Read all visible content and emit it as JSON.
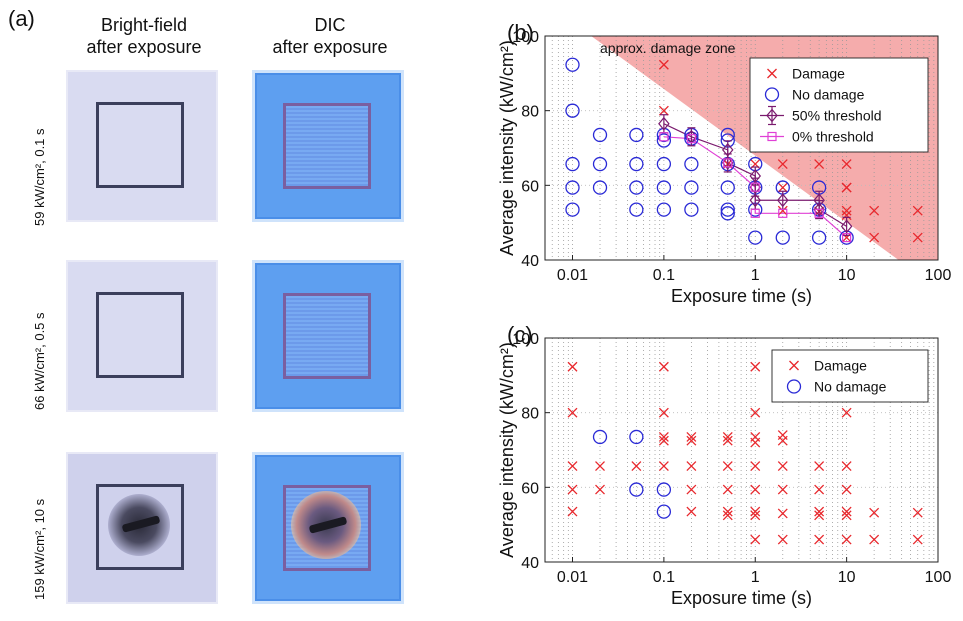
{
  "panel_a": {
    "letter": "(a)",
    "col_headers": [
      "Bright-field\nafter exposure",
      "DIC\nafter exposure"
    ],
    "col_header_lines": [
      [
        "Bright-field",
        "after exposure"
      ],
      [
        "DIC",
        "after exposure"
      ]
    ],
    "row_labels": [
      "59 kW/cm², 0.1 s",
      "66 kW/cm², 0.5 s",
      "159 kW/cm², 10 s"
    ]
  },
  "chart_data": [
    {
      "panel": "(b)",
      "type": "scatter",
      "xlabel": "Exposure time (s)",
      "ylabel": "Average intensity (kW/cm²)",
      "xscale": "log",
      "xlim": [
        0.005,
        100
      ],
      "ylim": [
        40,
        100
      ],
      "xticks": [
        0.01,
        0.1,
        1,
        10,
        100
      ],
      "xticklabels": [
        "0.01",
        "0.1",
        "1",
        "10",
        "100"
      ],
      "yticks": [
        40,
        60,
        80,
        100
      ],
      "grid": "minor dotted",
      "legend_position": "top-right",
      "annotation": "approx. damage zone",
      "shaded_zone_polygon": [
        [
          0.016,
          100
        ],
        [
          100,
          100
        ],
        [
          100,
          40
        ],
        [
          37,
          40
        ]
      ],
      "colors": {
        "damage": "#e8282d",
        "no_damage": "#2a2ad6",
        "threshold50": "#7a1a6e",
        "threshold0": "#e040d6",
        "zone": "#f4a8a8"
      },
      "series": [
        {
          "name": "Damage",
          "marker": "x",
          "points": [
            [
              0.1,
              92.3
            ],
            [
              1,
              92.3
            ],
            [
              0.1,
              80
            ],
            [
              1,
              80
            ],
            [
              1,
              73.5
            ],
            [
              1,
              72
            ],
            [
              2,
              72.5
            ],
            [
              0.5,
              65.7
            ],
            [
              1,
              65.7
            ],
            [
              2,
              65.7
            ],
            [
              5,
              65.7
            ],
            [
              10,
              65.7
            ],
            [
              2,
              59.4
            ],
            [
              10,
              59.4
            ],
            [
              10,
              59.4
            ],
            [
              2,
              53.2
            ],
            [
              5,
              53
            ],
            [
              10,
              53.2
            ],
            [
              10,
              52
            ],
            [
              20,
              53.2
            ],
            [
              60,
              53.2
            ],
            [
              10,
              46
            ],
            [
              20,
              46
            ],
            [
              60,
              46
            ]
          ]
        },
        {
          "name": "No damage",
          "marker": "o",
          "points": [
            [
              0.01,
              92.3
            ],
            [
              0.01,
              80
            ],
            [
              0.01,
              65.7
            ],
            [
              0.01,
              59.4
            ],
            [
              0.01,
              53.5
            ],
            [
              0.02,
              73.5
            ],
            [
              0.02,
              65.7
            ],
            [
              0.02,
              59.4
            ],
            [
              0.05,
              73.5
            ],
            [
              0.05,
              65.7
            ],
            [
              0.05,
              59.4
            ],
            [
              0.05,
              53.5
            ],
            [
              0.1,
              73.5
            ],
            [
              0.1,
              72
            ],
            [
              0.1,
              65.7
            ],
            [
              0.1,
              59.4
            ],
            [
              0.1,
              53.5
            ],
            [
              0.2,
              73.5
            ],
            [
              0.2,
              72.5
            ],
            [
              0.2,
              65.7
            ],
            [
              0.2,
              59.4
            ],
            [
              0.2,
              53.5
            ],
            [
              0.5,
              73.5
            ],
            [
              0.5,
              72
            ],
            [
              0.5,
              65.7
            ],
            [
              0.5,
              59.4
            ],
            [
              0.5,
              53.5
            ],
            [
              0.5,
              52.5
            ],
            [
              1,
              65.7
            ],
            [
              1,
              59.4
            ],
            [
              1,
              53.5
            ],
            [
              1,
              46
            ],
            [
              2,
              59.4
            ],
            [
              2,
              46
            ],
            [
              5,
              59.4
            ],
            [
              5,
              53.5
            ],
            [
              5,
              46
            ],
            [
              10,
              46
            ]
          ]
        },
        {
          "name": "50% threshold",
          "marker": "diamond-errorbar",
          "line": true,
          "points": [
            [
              0.1,
              76.5
            ],
            [
              0.2,
              73
            ],
            [
              0.5,
              69.5
            ],
            [
              0.5,
              66
            ],
            [
              1,
              62.5
            ],
            [
              1,
              59.5
            ],
            [
              1,
              56
            ],
            [
              2,
              56
            ],
            [
              5,
              56
            ],
            [
              5,
              53.5
            ],
            [
              10,
              49
            ]
          ]
        },
        {
          "name": "0% threshold",
          "marker": "square",
          "line": true,
          "points": [
            [
              0.1,
              73
            ],
            [
              0.2,
              72.5
            ],
            [
              0.5,
              66
            ],
            [
              1,
              59.5
            ],
            [
              1,
              52.5
            ],
            [
              2,
              52.5
            ],
            [
              5,
              52.5
            ],
            [
              10,
              46
            ]
          ]
        }
      ]
    },
    {
      "panel": "(c)",
      "type": "scatter",
      "xlabel": "Exposure time (s)",
      "ylabel": "Average intensity (kW/cm²)",
      "xscale": "log",
      "xlim": [
        0.005,
        100
      ],
      "ylim": [
        40,
        100
      ],
      "xticks": [
        0.01,
        0.1,
        1,
        10,
        100
      ],
      "xticklabels": [
        "0.01",
        "0.1",
        "1",
        "10",
        "100"
      ],
      "yticks": [
        40,
        60,
        80,
        100
      ],
      "grid": "minor dotted",
      "legend_position": "top-right",
      "colors": {
        "damage": "#e8282d",
        "no_damage": "#2a2ad6"
      },
      "series": [
        {
          "name": "Damage",
          "marker": "x",
          "points": [
            [
              0.01,
              92.3
            ],
            [
              0.1,
              92.3
            ],
            [
              1,
              92.3
            ],
            [
              0.01,
              80
            ],
            [
              0.1,
              80
            ],
            [
              1,
              80
            ],
            [
              10,
              80
            ],
            [
              0.1,
              73.5
            ],
            [
              0.1,
              72.5
            ],
            [
              0.2,
              73.5
            ],
            [
              0.2,
              72.5
            ],
            [
              0.5,
              73.5
            ],
            [
              0.5,
              72.5
            ],
            [
              1,
              73.5
            ],
            [
              1,
              72
            ],
            [
              2,
              74
            ],
            [
              2,
              72.5
            ],
            [
              0.01,
              65.7
            ],
            [
              0.02,
              65.7
            ],
            [
              0.05,
              65.7
            ],
            [
              0.1,
              65.7
            ],
            [
              0.2,
              65.7
            ],
            [
              0.5,
              65.7
            ],
            [
              1,
              65.7
            ],
            [
              2,
              65.7
            ],
            [
              5,
              65.7
            ],
            [
              10,
              65.7
            ],
            [
              0.01,
              59.4
            ],
            [
              0.02,
              59.4
            ],
            [
              0.2,
              59.4
            ],
            [
              0.5,
              59.4
            ],
            [
              1,
              59.4
            ],
            [
              2,
              59.4
            ],
            [
              5,
              59.4
            ],
            [
              10,
              59.4
            ],
            [
              0.01,
              53.5
            ],
            [
              0.2,
              53.5
            ],
            [
              0.5,
              53.5
            ],
            [
              0.5,
              52.5
            ],
            [
              1,
              53.5
            ],
            [
              1,
              52.5
            ],
            [
              2,
              53
            ],
            [
              5,
              53.5
            ],
            [
              5,
              52.5
            ],
            [
              10,
              53.5
            ],
            [
              10,
              52.5
            ],
            [
              20,
              53.2
            ],
            [
              60,
              53.2
            ],
            [
              1,
              46
            ],
            [
              2,
              46
            ],
            [
              5,
              46
            ],
            [
              10,
              46
            ],
            [
              20,
              46
            ],
            [
              60,
              46
            ]
          ]
        },
        {
          "name": "No damage",
          "marker": "o",
          "points": [
            [
              0.02,
              73.5
            ],
            [
              0.05,
              73.5
            ],
            [
              0.05,
              59.4
            ],
            [
              0.1,
              59.4
            ],
            [
              0.1,
              53.5
            ]
          ]
        }
      ]
    }
  ]
}
